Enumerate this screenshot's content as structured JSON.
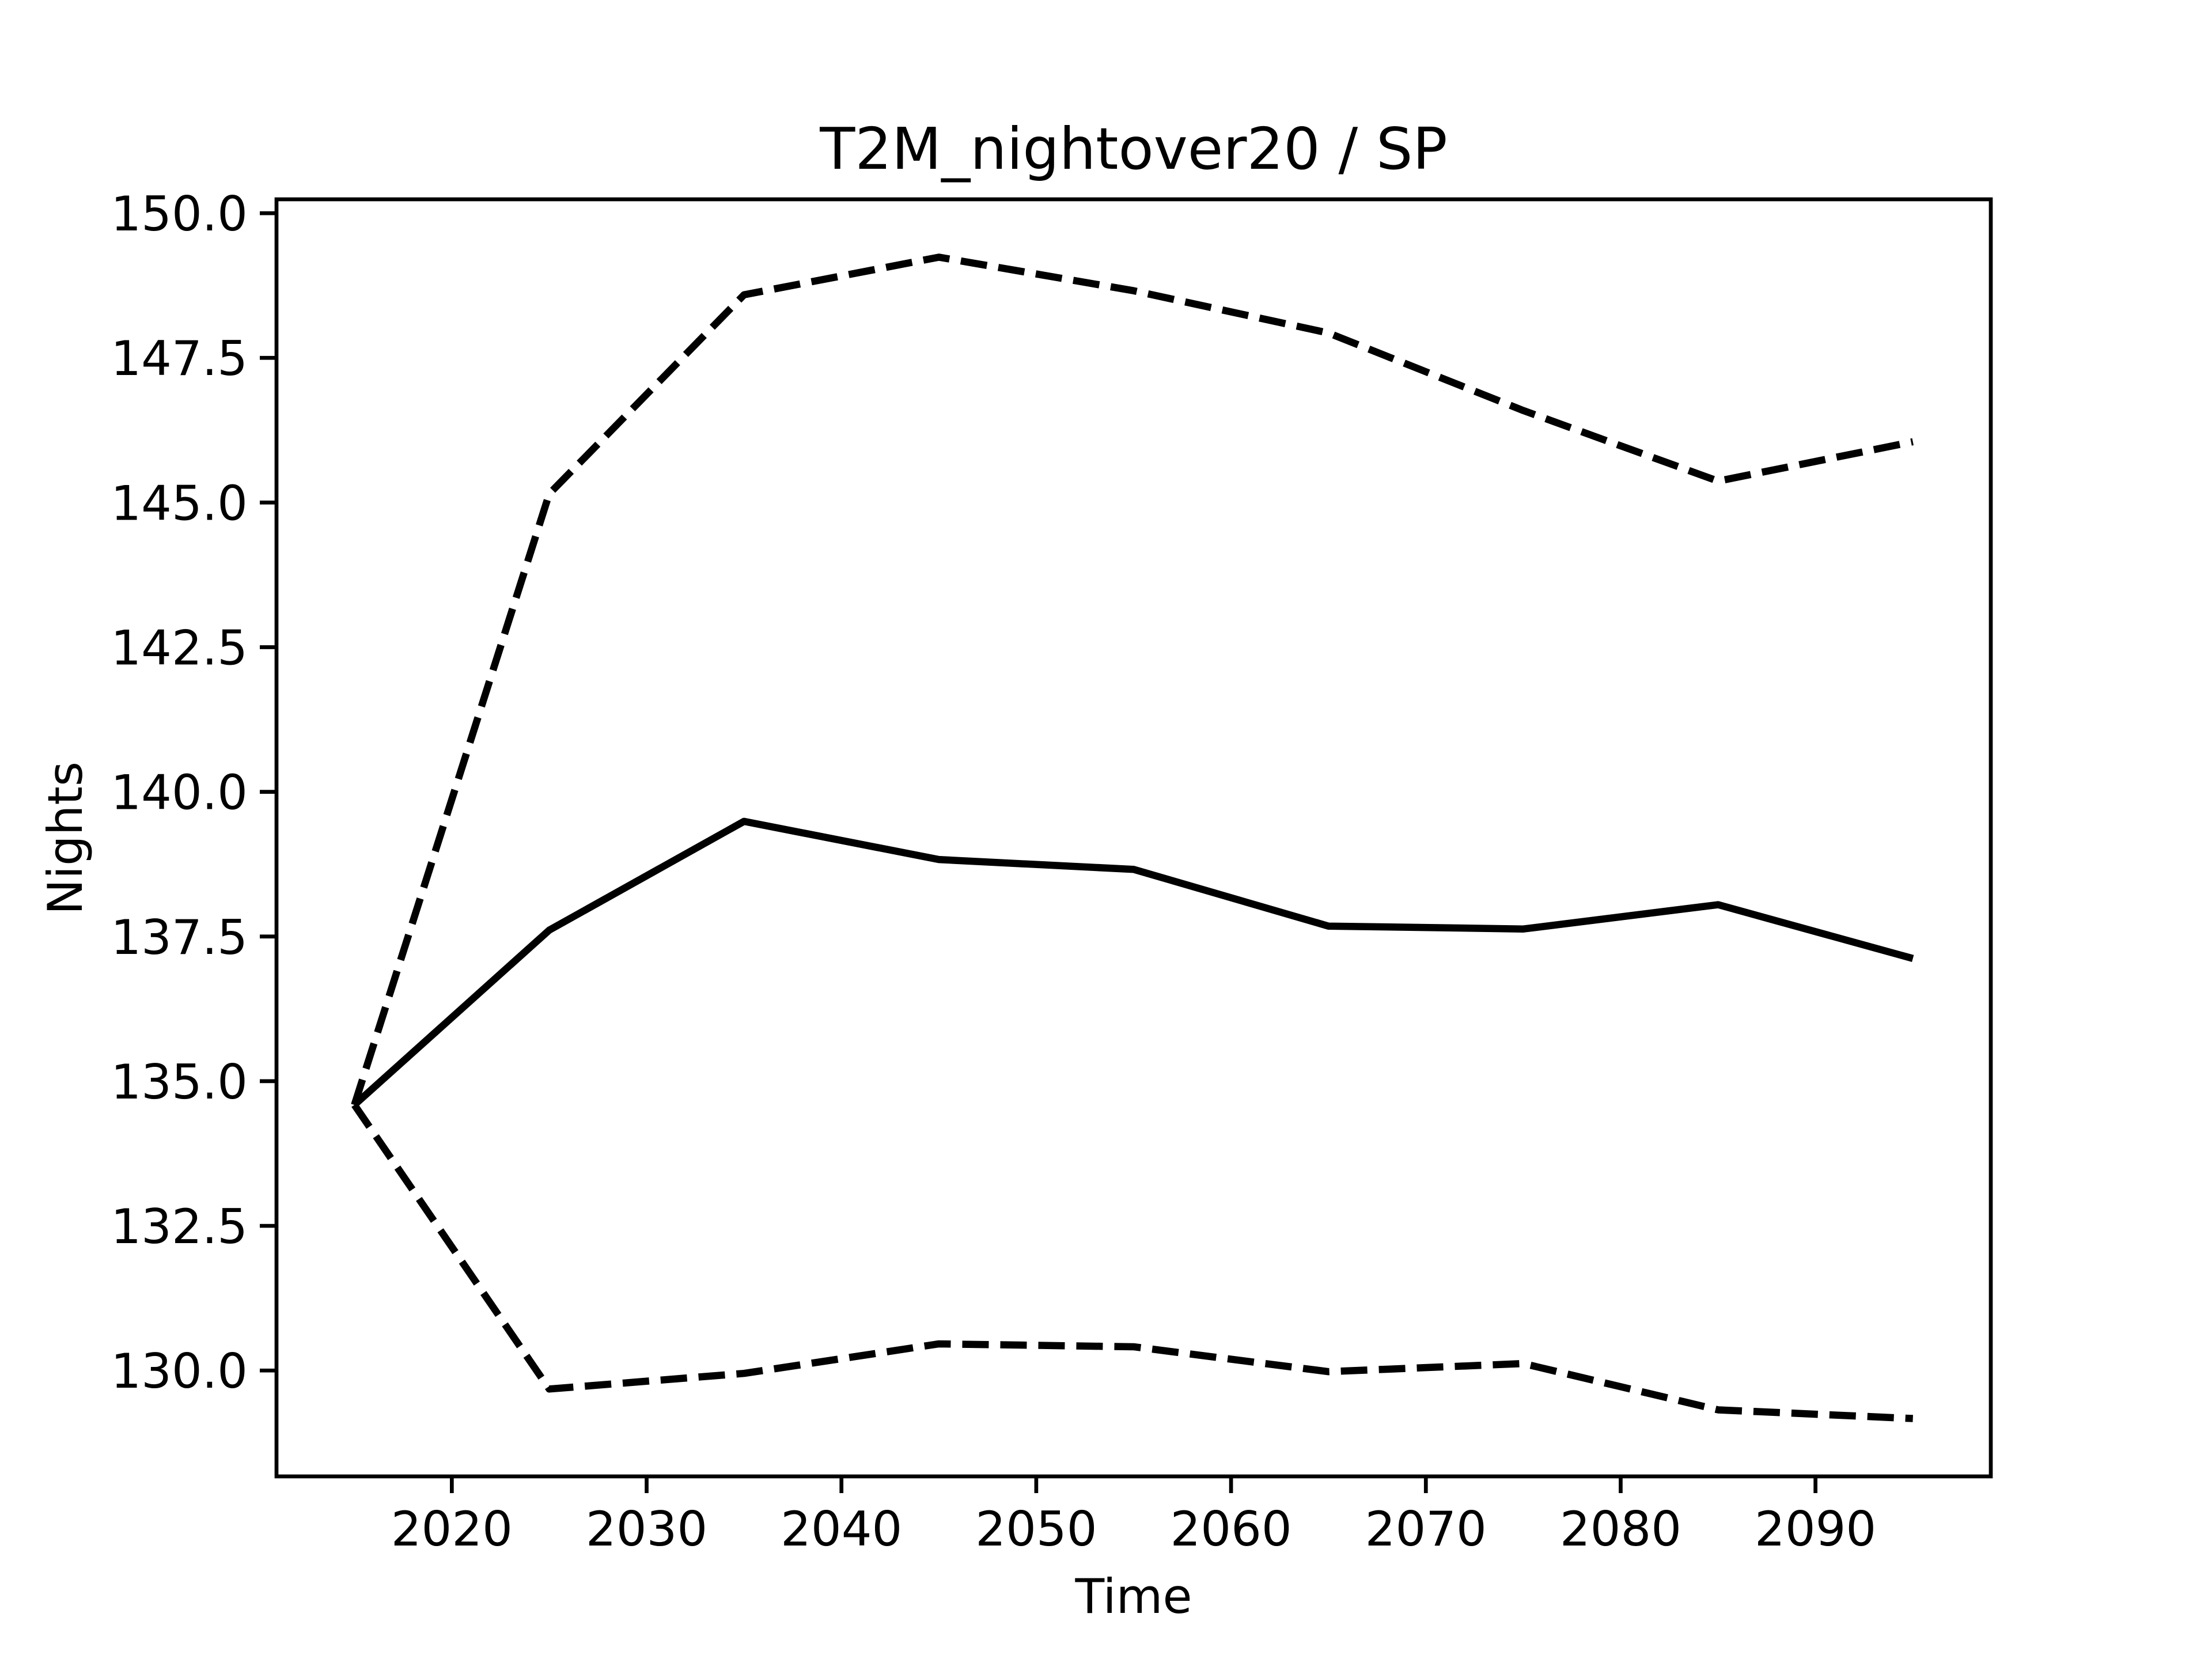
{
  "chart_data": {
    "type": "line",
    "title": "T2M_nightover20 / SP",
    "xlabel": "Time",
    "ylabel": "Nights",
    "x": [
      2015,
      2025,
      2035,
      2045,
      2055,
      2065,
      2075,
      2085,
      2095
    ],
    "series": [
      {
        "color": "#000000",
        "dash": "solid",
        "values": [
          134.59,
          137.61,
          139.49,
          138.83,
          138.66,
          137.68,
          137.63,
          138.05,
          137.12
        ]
      },
      {
        "color": "#000000",
        "dash": "dashed",
        "values": [
          134.59,
          145.15,
          148.59,
          149.24,
          148.66,
          147.93,
          146.59,
          145.37,
          146.05
        ]
      },
      {
        "color": "#000000",
        "dash": "dashed",
        "values": [
          134.59,
          129.68,
          129.95,
          130.46,
          130.41,
          129.98,
          130.12,
          129.32,
          129.17
        ]
      }
    ],
    "xlim": [
      2011,
      2099
    ],
    "xticks": [
      2020,
      2030,
      2040,
      2050,
      2060,
      2070,
      2080,
      2090
    ],
    "ylim": [
      128.17,
      150.24
    ],
    "yticks": [
      {
        "value": 130,
        "label": "130.0"
      },
      {
        "value": 132.5,
        "label": "132.5"
      },
      {
        "value": 135,
        "label": "135.0"
      },
      {
        "value": 137.5,
        "label": "137.5"
      },
      {
        "value": 140,
        "label": "140.0"
      },
      {
        "value": 142.5,
        "label": "142.5"
      },
      {
        "value": 145,
        "label": "145.0"
      },
      {
        "value": 147.5,
        "label": "147.5"
      },
      {
        "value": 150,
        "label": "150.0"
      }
    ],
    "grid": false
  }
}
